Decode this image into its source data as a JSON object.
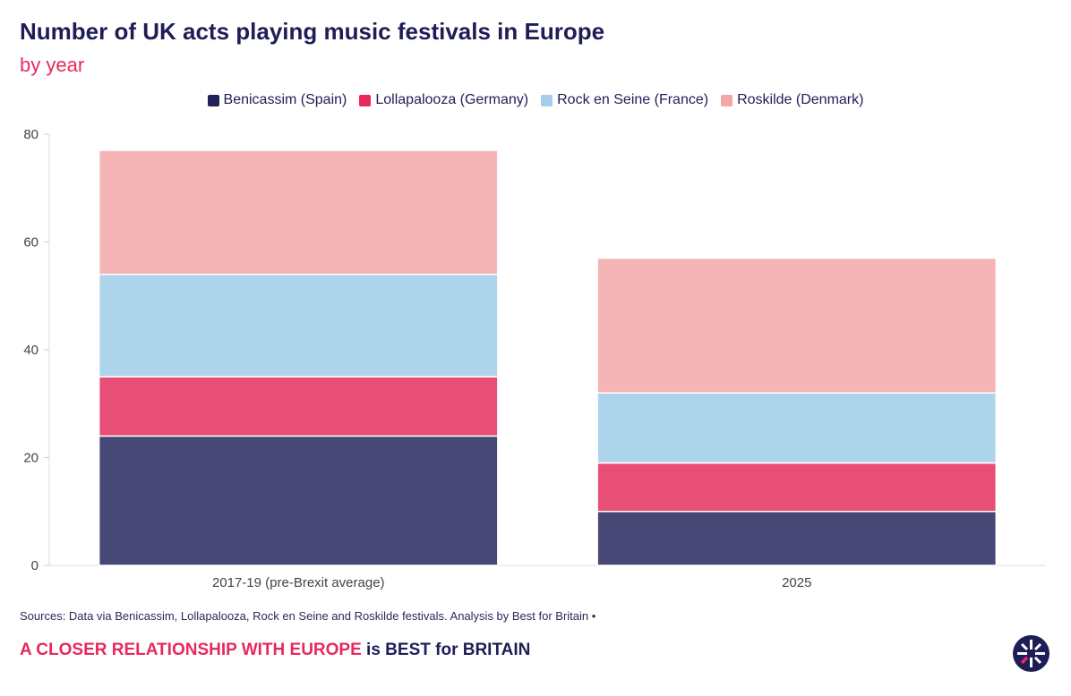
{
  "chart_data": {
    "type": "bar",
    "stacked": true,
    "title": "Number of UK acts playing music festivals in Europe",
    "subtitle": "by year",
    "categories": [
      "2017-19 (pre-Brexit average)",
      "2025"
    ],
    "series": [
      {
        "name": "Benicassim (Spain)",
        "values": [
          24,
          10
        ],
        "color": "#474875",
        "legend_color": "#22215a"
      },
      {
        "name": "Lollapalooza (Germany)",
        "values": [
          11,
          9
        ],
        "color": "#e94f76",
        "legend_color": "#e8295c"
      },
      {
        "name": "Rock en Seine (France)",
        "values": [
          19,
          13
        ],
        "color": "#aed4ec",
        "legend_color": "#a6cdea"
      },
      {
        "name": "Roskilde (Denmark)",
        "values": [
          23,
          25
        ],
        "color": "#f5b4b5",
        "legend_color": "#f4a6a8"
      }
    ],
    "ylim": [
      0,
      80
    ],
    "yticks": [
      "0",
      "20",
      "40",
      "60",
      "80"
    ],
    "xlabel": "",
    "ylabel": "",
    "legend": "top-center",
    "grid": false
  },
  "footer": {
    "source": "Sources: Data via Benicassim, Lollapalooza, Rock en Seine and Roskilde festivals. Analysis by Best for Britain •",
    "tagline_a": "A CLOSER RELATIONSHIP WITH EUROPE",
    "tagline_b": " is BEST for BRITAIN",
    "logo": "Best for Britain logo"
  }
}
